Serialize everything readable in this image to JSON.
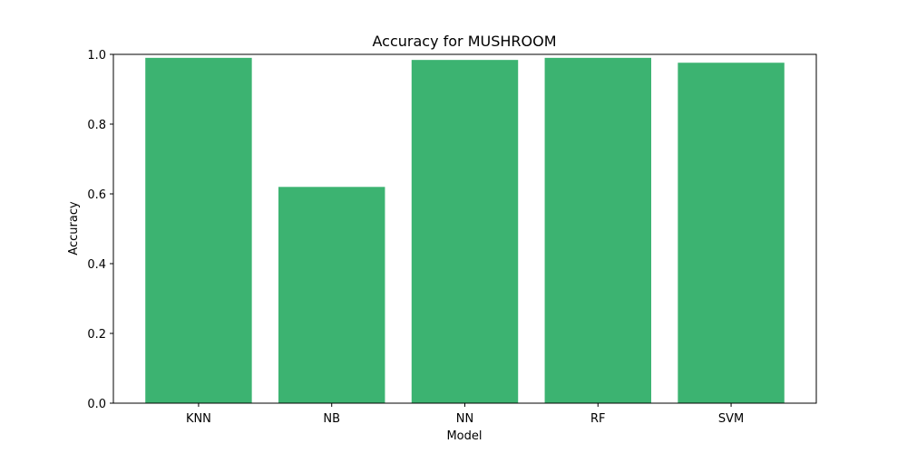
{
  "chart_data": {
    "type": "bar",
    "title": "Accuracy for MUSHROOM",
    "xlabel": "Model",
    "ylabel": "Accuracy",
    "categories": [
      "KNN",
      "NB",
      "NN",
      "RF",
      "SVM"
    ],
    "values": [
      0.99,
      0.62,
      0.984,
      0.99,
      0.976
    ],
    "ylim": [
      0,
      1.0
    ],
    "yticks": [
      0.0,
      0.2,
      0.4,
      0.6,
      0.8,
      1.0
    ],
    "ytick_labels": [
      "0.0",
      "0.2",
      "0.4",
      "0.6",
      "0.8",
      "1.0"
    ],
    "bar_color": "#3cb371",
    "grid": false,
    "legend": "none"
  }
}
